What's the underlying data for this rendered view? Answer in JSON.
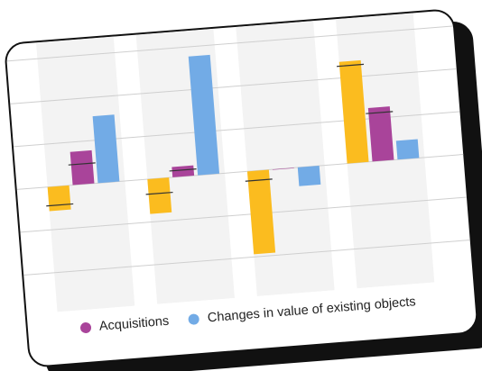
{
  "colors": {
    "series_unlabeled": "#FBBC1F",
    "acquisitions": "#A9449A",
    "changes": "#72ABE6",
    "band": "#F3F3F3",
    "grid": "#CFCFCF",
    "marker": "#333333"
  },
  "chart_data": {
    "type": "bar",
    "categories": [
      "",
      "",
      "",
      ""
    ],
    "series": [
      {
        "values": [
          -0.45,
          -0.65,
          -1.55,
          1.9
        ]
      },
      {
        "name": "Acquisitions",
        "values": [
          0.62,
          0.19,
          0.0,
          1.0
        ]
      },
      {
        "name": "Changes in value of existing objects",
        "values": [
          1.25,
          2.22,
          -0.35,
          0.35
        ]
      }
    ],
    "markers": [
      [
        -0.35,
        -0.28,
        -0.18,
        1.82
      ],
      [
        0.38,
        0.12,
        null,
        0.9
      ],
      [
        null,
        null,
        null,
        null
      ]
    ],
    "ylim": [
      -2.2,
      2.6
    ],
    "grid": true,
    "legend_position": "bottom-left"
  }
}
